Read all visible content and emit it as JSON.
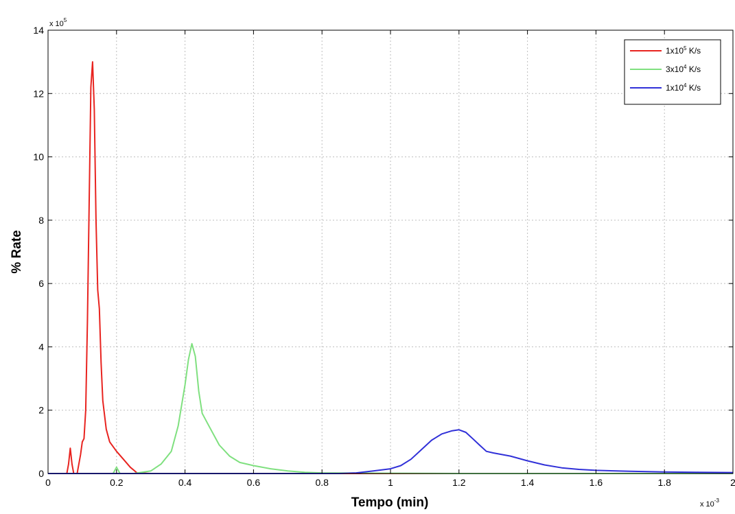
{
  "chart_data": {
    "type": "line",
    "title": "",
    "xlabel": "Tempo (min)",
    "ylabel": "% Rate",
    "x_multiplier": "x 10",
    "x_multiplier_exp": "-3",
    "y_multiplier": "x 10",
    "y_multiplier_exp": "5",
    "xlim": [
      0,
      2
    ],
    "ylim": [
      0,
      14
    ],
    "xticks": [
      "0",
      "0.2",
      "0.4",
      "0.6",
      "0.8",
      "1",
      "1.2",
      "1.4",
      "1.6",
      "1.8",
      "2"
    ],
    "yticks": [
      "0",
      "2",
      "4",
      "6",
      "8",
      "10",
      "12",
      "14"
    ],
    "grid": true,
    "legend_position": "top-right",
    "series": [
      {
        "name": "1x10",
        "name_exp": "5",
        "name_unit": " K/s",
        "color": "#e8231f",
        "x": [
          0,
          0.055,
          0.06,
          0.065,
          0.07,
          0.075,
          0.085,
          0.095,
          0.1,
          0.105,
          0.11,
          0.115,
          0.12,
          0.125,
          0.13,
          0.135,
          0.14,
          0.145,
          0.15,
          0.155,
          0.16,
          0.17,
          0.18,
          0.2,
          0.22,
          0.24,
          0.26,
          0.3,
          0.6,
          2
        ],
        "y": [
          0,
          0,
          0.3,
          0.8,
          0.3,
          0,
          0,
          0.6,
          1.0,
          1.1,
          2.0,
          4.8,
          8.5,
          12.2,
          13.0,
          11.5,
          8.0,
          5.8,
          5.2,
          3.5,
          2.3,
          1.4,
          1.0,
          0.7,
          0.45,
          0.2,
          0.02,
          0,
          0,
          0
        ]
      },
      {
        "name": "3x10",
        "name_exp": "4",
        "name_unit": " K/s",
        "color": "#7fe07f",
        "x": [
          0,
          0.19,
          0.2,
          0.21,
          0.25,
          0.3,
          0.33,
          0.36,
          0.38,
          0.4,
          0.41,
          0.42,
          0.43,
          0.44,
          0.45,
          0.47,
          0.5,
          0.53,
          0.56,
          0.6,
          0.65,
          0.7,
          0.75,
          0.8,
          0.9,
          1.2,
          2
        ],
        "y": [
          0,
          0,
          0.2,
          0,
          0,
          0.08,
          0.3,
          0.7,
          1.5,
          2.8,
          3.6,
          4.1,
          3.7,
          2.6,
          1.9,
          1.5,
          0.9,
          0.55,
          0.35,
          0.25,
          0.15,
          0.08,
          0.04,
          0.02,
          0.01,
          0,
          0
        ]
      },
      {
        "name": "1x10",
        "name_exp": "4",
        "name_unit": " K/s",
        "color": "#3030d8",
        "x": [
          0,
          0.85,
          0.9,
          0.95,
          1.0,
          1.03,
          1.06,
          1.09,
          1.12,
          1.15,
          1.18,
          1.2,
          1.22,
          1.24,
          1.26,
          1.28,
          1.3,
          1.35,
          1.4,
          1.45,
          1.5,
          1.55,
          1.6,
          1.7,
          1.8,
          1.9,
          2.0
        ],
        "y": [
          0,
          0,
          0.02,
          0.08,
          0.15,
          0.25,
          0.45,
          0.75,
          1.05,
          1.25,
          1.35,
          1.38,
          1.3,
          1.1,
          0.9,
          0.7,
          0.65,
          0.55,
          0.4,
          0.27,
          0.18,
          0.13,
          0.1,
          0.07,
          0.05,
          0.04,
          0.03
        ]
      }
    ]
  }
}
